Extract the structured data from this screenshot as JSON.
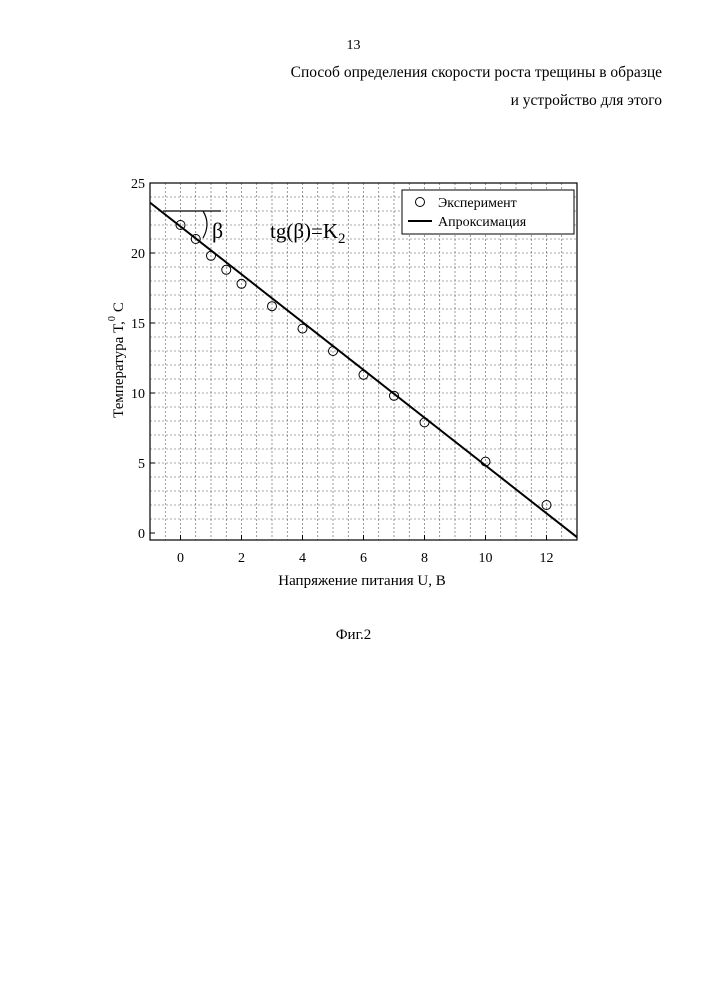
{
  "page_number": "13",
  "title_lines": [
    "Способ определения скорости роста трещины в образце",
    "и устройство для этого"
  ],
  "caption": "Фиг.2",
  "chart_data": {
    "type": "scatter",
    "title": "",
    "xlabel": "Напряжение питания U, В",
    "ylabel_main": "Температура T,",
    "ylabel_sup": "0",
    "ylabel_unit": "С",
    "xlim": [
      -1,
      13
    ],
    "ylim": [
      -0.5,
      25
    ],
    "x_ticks": [
      0,
      2,
      4,
      6,
      8,
      10,
      12
    ],
    "y_ticks": [
      0,
      5,
      10,
      15,
      20,
      25
    ],
    "grid": true,
    "legend_position": "top-right",
    "series": [
      {
        "name": "Эксперимент",
        "kind": "markers",
        "x": [
          0,
          0.5,
          1,
          1.5,
          2,
          3,
          4,
          5,
          6,
          7,
          8,
          10,
          12
        ],
        "y": [
          22.0,
          21.0,
          19.8,
          18.8,
          17.8,
          16.2,
          14.6,
          13.0,
          11.3,
          9.8,
          7.9,
          5.1,
          2.0
        ]
      },
      {
        "name": "Апроксимация",
        "kind": "line",
        "x": [
          -1,
          13
        ],
        "y": [
          23.6,
          -0.3
        ]
      }
    ],
    "annotations": {
      "angle_symbol": "β",
      "formula_main": "tg(β)=K",
      "formula_sub": "2"
    }
  }
}
